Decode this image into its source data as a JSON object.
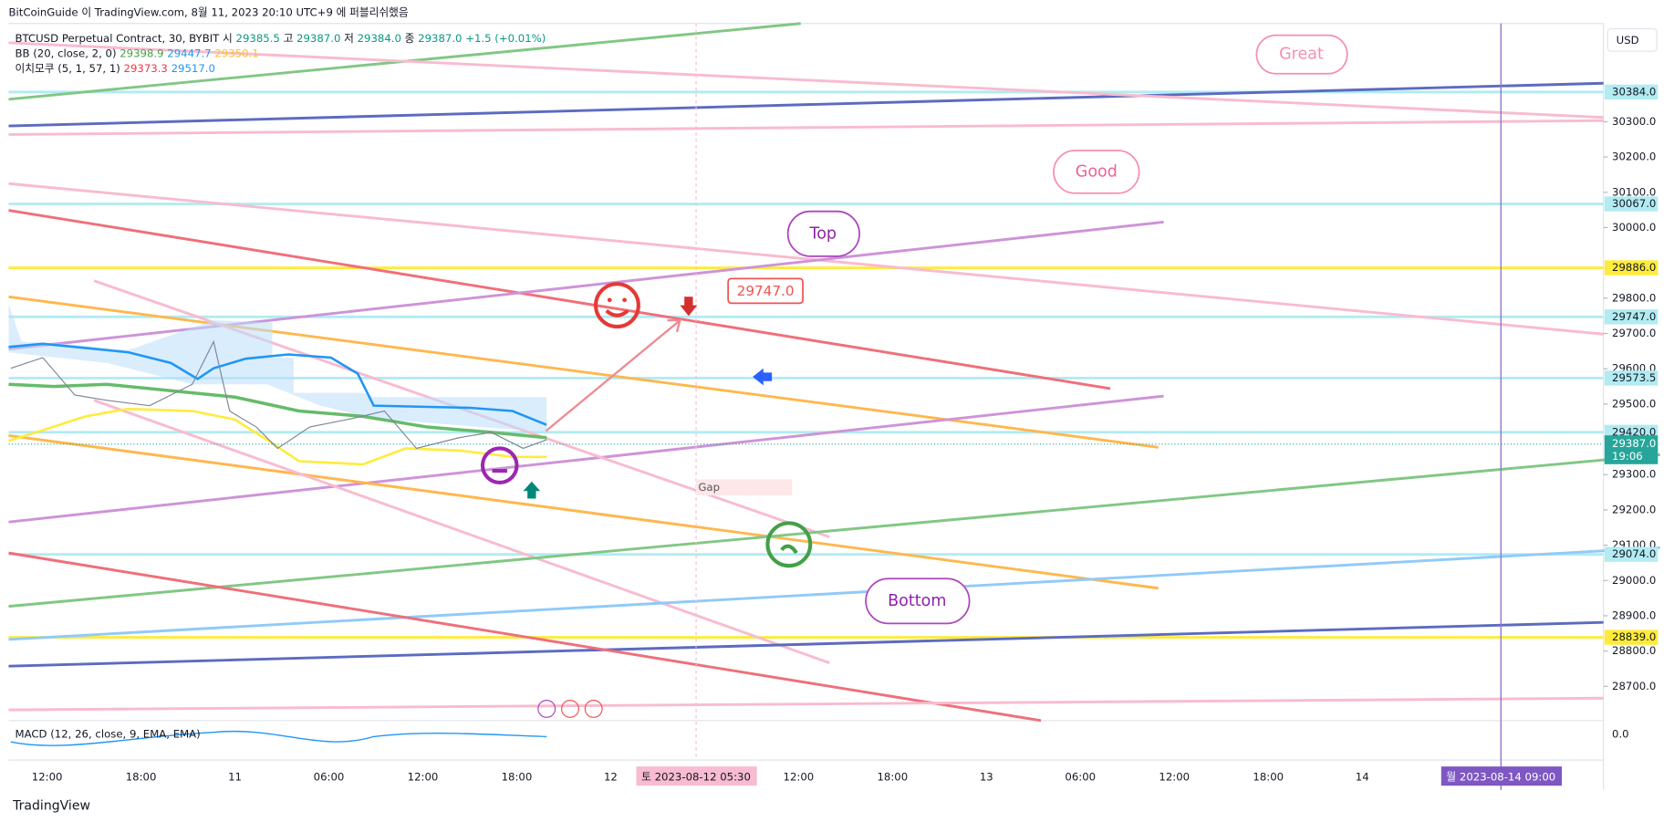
{
  "header": {
    "source": "BitCoinGuide 이 TradingView.com, 8월 11, 2023 20:10 UTC+9 에 퍼블리쉬했음"
  },
  "legend": {
    "symbol": "BTCUSD Perpetual Contract, 30, BYBIT",
    "ohlc": [
      {
        "label": "시",
        "value": "29385.5"
      },
      {
        "label": "고",
        "value": "29387.0"
      },
      {
        "label": "저",
        "value": "29384.0"
      },
      {
        "label": "종",
        "value": "29387.0"
      }
    ],
    "change": "+1.5 (+0.01%)",
    "bb": {
      "name": "BB (20, close, 2, 0)",
      "values": [
        {
          "text": "29398.9",
          "color": "#43a047"
        },
        {
          "text": "29447.7",
          "color": "#2196f3"
        },
        {
          "text": "29350.1",
          "color": "#fbc02d"
        }
      ]
    },
    "ichimoku": {
      "name": "이치모쿠 (5, 1, 57, 1)",
      "values": [
        {
          "text": "29373.3",
          "color": "#f23645"
        },
        {
          "text": "29517.0",
          "color": "#2196f3"
        }
      ]
    },
    "macd": {
      "name": "MACD (12, 26, close, 9, EMA, EMA)"
    }
  },
  "price_axis": {
    "currency": "USD",
    "ticks": [
      {
        "value": 30300,
        "label": "30300.0"
      },
      {
        "value": 30200,
        "label": "30200.0"
      },
      {
        "value": 30100,
        "label": "30100.0"
      },
      {
        "value": 30000,
        "label": "30000.0"
      },
      {
        "value": 29800,
        "label": "29800.0"
      },
      {
        "value": 29700,
        "label": "29700.0"
      },
      {
        "value": 29600,
        "label": "29600.0"
      },
      {
        "value": 29500,
        "label": "29500.0"
      },
      {
        "value": 29300,
        "label": "29300.0"
      },
      {
        "value": 29200,
        "label": "29200.0"
      },
      {
        "value": 29100,
        "label": "29100.0"
      },
      {
        "value": 29000,
        "label": "29000.0"
      },
      {
        "value": 28900,
        "label": "28900.0"
      },
      {
        "value": 28800,
        "label": "28800.0"
      },
      {
        "value": 28700,
        "label": "28700.0"
      }
    ],
    "levels": [
      {
        "value": 30384,
        "label": "30384.0",
        "color": "#b2ebf2"
      },
      {
        "value": 30067,
        "label": "30067.0",
        "color": "#b2ebf2"
      },
      {
        "value": 29886,
        "label": "29886.0",
        "color": "#ffeb3b"
      },
      {
        "value": 29747,
        "label": "29747.0",
        "color": "#b2ebf2"
      },
      {
        "value": 29573.5,
        "label": "29573.5",
        "color": "#b2ebf2"
      },
      {
        "value": 29420,
        "label": "29420.0",
        "color": "#b2ebf2"
      },
      {
        "value": 29074,
        "label": "29074.0",
        "color": "#b2ebf2"
      },
      {
        "value": 28839,
        "label": "28839.0",
        "color": "#ffeb3b"
      }
    ],
    "last_price": {
      "value": 29387,
      "label": "29387.0",
      "countdown": "19:06"
    },
    "macd_zero": "0.0"
  },
  "time_axis": {
    "labels": [
      "12:00",
      "18:00",
      "11",
      "06:00",
      "12:00",
      "18:00",
      "12",
      null,
      "12:00",
      "18:00",
      "13",
      "06:00",
      "12:00",
      "18:00",
      "14"
    ],
    "cursor_label": "토 2023-08-12  05:30",
    "marker_label": "월 2023-08-14  09:00"
  },
  "annotations": {
    "great": "Great",
    "good": "Good",
    "top": "Top",
    "bottom": "Bottom",
    "callout": "29747.0",
    "gap": "Gap"
  },
  "footer": {
    "brand": "TradingView"
  }
}
